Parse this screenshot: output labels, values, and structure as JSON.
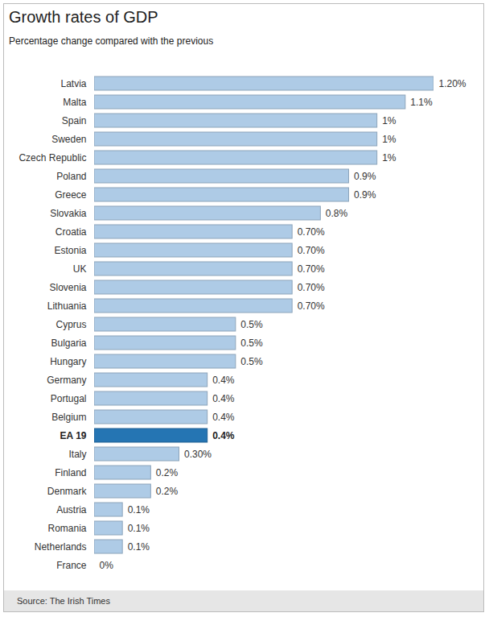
{
  "chart_data": {
    "type": "bar",
    "orientation": "horizontal",
    "title": "Growth rates of GDP",
    "subtitle": "Percentage change compared with the previous",
    "source": "Source: The Irish Times",
    "categories": [
      "Latvia",
      "Malta",
      "Spain",
      "Sweden",
      "Czech Republic",
      "Poland",
      "Greece",
      "Slovakia",
      "Croatia",
      "Estonia",
      "UK",
      "Slovenia",
      "Lithuania",
      "Cyprus",
      "Bulgaria",
      "Hungary",
      "Germany",
      "Portugal",
      "Belgium",
      "EA 19",
      "Italy",
      "Finland",
      "Denmark",
      "Austria",
      "Romania",
      "Netherlands",
      "France"
    ],
    "values": [
      1.2,
      1.1,
      1,
      1,
      1,
      0.9,
      0.9,
      0.8,
      0.7,
      0.7,
      0.7,
      0.7,
      0.7,
      0.5,
      0.5,
      0.5,
      0.4,
      0.4,
      0.4,
      0.4,
      0.3,
      0.2,
      0.2,
      0.1,
      0.1,
      0.1,
      0
    ],
    "value_labels": [
      "1.20%",
      "1.1%",
      "1%",
      "1%",
      "1%",
      "0.9%",
      "0.9%",
      "0.8%",
      "0.70%",
      "0.70%",
      "0.70%",
      "0.70%",
      "0.70%",
      "0.5%",
      "0.5%",
      "0.5%",
      "0.4%",
      "0.4%",
      "0.4%",
      "0.4%",
      "0.30%",
      "0.2%",
      "0.2%",
      "0.1%",
      "0.1%",
      "0.1%",
      "0%"
    ],
    "colors": [
      "#aecbe6",
      "#aecbe6",
      "#aecbe6",
      "#aecbe6",
      "#aecbe6",
      "#aecbe6",
      "#aecbe6",
      "#aecbe6",
      "#aecbe6",
      "#aecbe6",
      "#aecbe6",
      "#aecbe6",
      "#aecbe6",
      "#aecbe6",
      "#aecbe6",
      "#aecbe6",
      "#aecbe6",
      "#aecbe6",
      "#aecbe6",
      "#2575b3",
      "#aecbe6",
      "#aecbe6",
      "#aecbe6",
      "#aecbe6",
      "#aecbe6",
      "#aecbe6",
      "#aecbe6"
    ],
    "data_labels": true,
    "tick_labels": "y",
    "grid": false
  }
}
